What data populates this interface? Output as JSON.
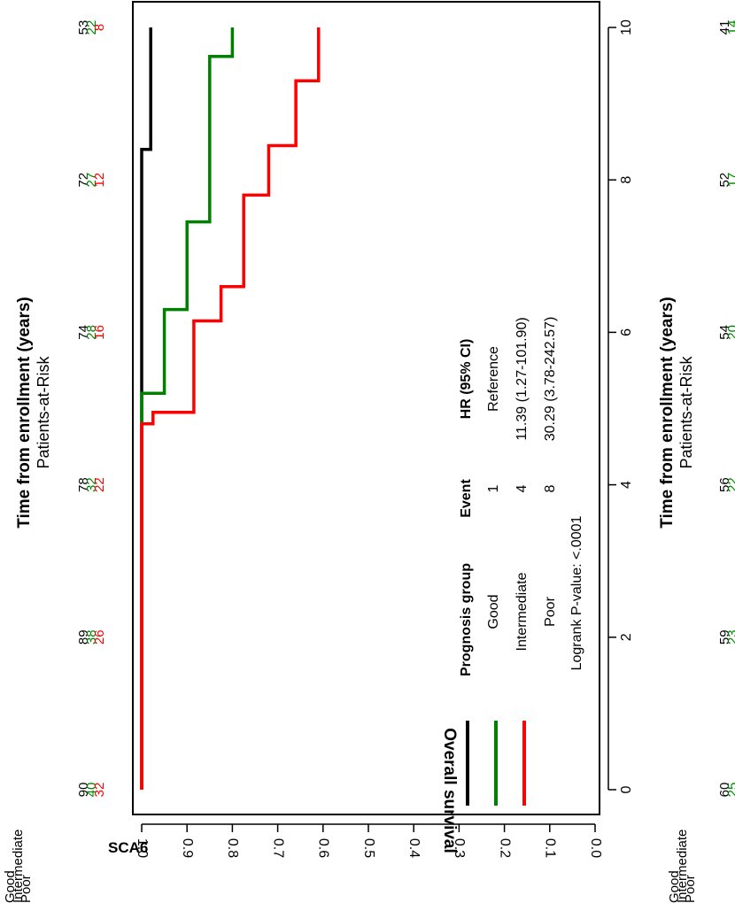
{
  "chart_data": {
    "type": "line",
    "subtype": "kaplan-meier",
    "orientation": "rotated-90-clockwise",
    "panel_label": "SCA6",
    "xlabel": "Time from enrollment (years)",
    "ylabel": "Overall survival",
    "xlim": [
      0,
      10
    ],
    "ylim": [
      0.0,
      1.0
    ],
    "xticks": [
      "0",
      "2",
      "4",
      "6",
      "8",
      "10"
    ],
    "yticks": [
      "0.0",
      "0.1",
      "0.2",
      "0.3",
      "0.4",
      "0.5",
      "0.6",
      "0.7",
      "0.8",
      "0.9",
      "1.0"
    ],
    "legend": {
      "headers": [
        "Prognosis group",
        "Event",
        "HR (95% CI)"
      ],
      "rows": [
        {
          "group": "Good",
          "event": "1",
          "hr": "Reference",
          "color": "#000000"
        },
        {
          "group": "Intermediate",
          "event": "4",
          "hr": "11.39 (1.27-101.90)",
          "color": "#008000"
        },
        {
          "group": "Poor",
          "event": "8",
          "hr": "30.29 (3.78-242.57)",
          "color": "#ff0000"
        }
      ],
      "pvalue": "Logrank P-value: <.0001"
    },
    "series": [
      {
        "name": "Good",
        "color": "#000000",
        "x": [
          0,
          8.4,
          8.4,
          10
        ],
        "y": [
          1.0,
          1.0,
          0.98,
          0.98
        ]
      },
      {
        "name": "Intermediate",
        "color": "#008000",
        "x": [
          0,
          5.2,
          5.2,
          6.3,
          6.3,
          7.45,
          7.45,
          9.62,
          9.62,
          10
        ],
        "y": [
          1.0,
          1.0,
          0.95,
          0.95,
          0.9,
          0.9,
          0.85,
          0.85,
          0.8,
          0.8
        ]
      },
      {
        "name": "Poor",
        "color": "#ff0000",
        "x": [
          0,
          4.8,
          4.8,
          4.95,
          4.95,
          6.15,
          6.15,
          6.6,
          6.6,
          7.8,
          7.8,
          8.45,
          8.45,
          9.3,
          9.3,
          10
        ],
        "y": [
          1.0,
          1.0,
          0.975,
          0.975,
          0.885,
          0.885,
          0.825,
          0.825,
          0.775,
          0.775,
          0.72,
          0.72,
          0.66,
          0.66,
          0.61,
          0.61
        ]
      }
    ],
    "risk_tables": [
      {
        "title": "Patients-at-Risk",
        "xlabel": "Time from enrollment (years)",
        "row_labels": [
          "Good",
          "Intermediate",
          "Poor"
        ],
        "row_colors": [
          "#000000",
          "#008000",
          "#ff0000"
        ],
        "times": [
          0,
          2,
          4,
          6,
          8,
          10
        ],
        "rows": [
          [
            "90",
            "89",
            "78",
            "74",
            "72",
            "53"
          ],
          [
            "40",
            "38",
            "32",
            "28",
            "27",
            "22"
          ],
          [
            "32",
            "26",
            "22",
            "16",
            "12",
            "8"
          ]
        ]
      },
      {
        "title": "Patients-at-Risk",
        "xlabel": "Time from enrollment (years)",
        "row_labels": [
          "Good",
          "Intermediate",
          "Poor"
        ],
        "row_colors": [
          "#000000",
          "#008000",
          "#ff0000"
        ],
        "times": [
          0,
          2,
          4,
          6,
          8,
          10
        ],
        "rows": [
          [
            "60",
            "59",
            "56",
            "54",
            "52",
            "41"
          ],
          [
            "25",
            "23",
            "22",
            "20",
            "17",
            "14"
          ],
          [
            "22",
            "22",
            "20",
            "16",
            "13",
            "8"
          ]
        ]
      }
    ]
  }
}
